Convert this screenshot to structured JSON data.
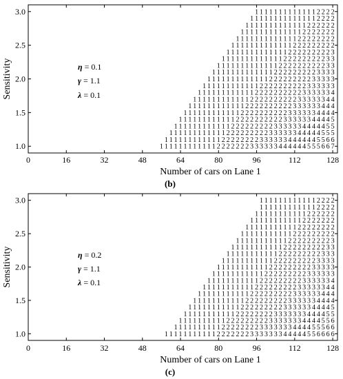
{
  "chart_data": [
    {
      "type": "table",
      "panel_label": "(b)",
      "xlabel": "Number of cars on Lane 1",
      "ylabel": "Sensitivity",
      "xlim": [
        0,
        130
      ],
      "ylim": [
        0.9,
        3.1
      ],
      "x_ticks": [
        "0",
        "16",
        "32",
        "48",
        "64",
        "80",
        "96",
        "112",
        "128"
      ],
      "y_ticks": [
        "1.0",
        "1.5",
        "2.0",
        "2.5",
        "3.0"
      ],
      "grid": false,
      "params": [
        {
          "greek": "η",
          "value": " = 0.1"
        },
        {
          "greek": "γ",
          "value": " = 1.1"
        },
        {
          "greek": "λ",
          "value": " = 0.1"
        }
      ],
      "sensitivity_levels": [
        1.0,
        1.1,
        1.2,
        1.3,
        1.4,
        1.5,
        1.6,
        1.7,
        1.8,
        1.9,
        2.0,
        2.1,
        2.2,
        2.3,
        2.4,
        2.5,
        2.6,
        2.7,
        2.8,
        2.9,
        3.0
      ],
      "x_values": [
        56,
        58,
        60,
        62,
        64,
        66,
        68,
        70,
        72,
        74,
        76,
        78,
        80,
        82,
        84,
        86,
        88,
        90,
        92,
        94,
        96,
        98,
        100,
        102,
        104,
        106,
        108,
        110,
        112,
        114,
        116,
        118,
        120,
        122,
        124,
        126,
        128
      ],
      "columns": [
        [
          1
        ],
        [
          1,
          1
        ],
        [
          1,
          1,
          1
        ],
        [
          1,
          1,
          1,
          1
        ],
        [
          1,
          1,
          1,
          1,
          1
        ],
        [
          1,
          1,
          1,
          1,
          1,
          1
        ],
        [
          1,
          1,
          1,
          1,
          1,
          1,
          1
        ],
        [
          1,
          1,
          1,
          1,
          1,
          1,
          1,
          1
        ],
        [
          1,
          1,
          1,
          1,
          1,
          1,
          1,
          1,
          1
        ],
        [
          1,
          1,
          1,
          1,
          1,
          1,
          1,
          1,
          1,
          1
        ],
        [
          1,
          1,
          1,
          1,
          1,
          1,
          1,
          1,
          1,
          1,
          1
        ],
        [
          1,
          1,
          1,
          1,
          1,
          1,
          1,
          1,
          1,
          1,
          1,
          1
        ],
        [
          2,
          1,
          1,
          1,
          1,
          1,
          1,
          1,
          1,
          1,
          1,
          1,
          1
        ],
        [
          2,
          2,
          1,
          1,
          1,
          1,
          1,
          1,
          1,
          1,
          1,
          1,
          1,
          1
        ],
        [
          2,
          2,
          2,
          1,
          1,
          1,
          1,
          1,
          1,
          1,
          1,
          1,
          1,
          1,
          1
        ],
        [
          2,
          2,
          2,
          2,
          1,
          1,
          1,
          1,
          1,
          1,
          1,
          1,
          1,
          1,
          1,
          1
        ],
        [
          2,
          2,
          2,
          2,
          2,
          1,
          1,
          1,
          1,
          1,
          1,
          1,
          1,
          1,
          1,
          1,
          1
        ],
        [
          2,
          2,
          2,
          2,
          2,
          2,
          1,
          1,
          1,
          1,
          1,
          1,
          1,
          1,
          1,
          1,
          1,
          1
        ],
        [
          2,
          2,
          2,
          2,
          2,
          2,
          2,
          1,
          1,
          1,
          1,
          1,
          1,
          1,
          1,
          1,
          1,
          1,
          1
        ],
        [
          3,
          2,
          2,
          2,
          2,
          2,
          2,
          2,
          1,
          1,
          1,
          1,
          1,
          1,
          1,
          1,
          1,
          1,
          1,
          1
        ],
        [
          3,
          2,
          2,
          2,
          2,
          2,
          2,
          2,
          2,
          1,
          1,
          1,
          1,
          1,
          1,
          1,
          1,
          1,
          1,
          1,
          1
        ],
        [
          3,
          3,
          2,
          2,
          2,
          2,
          2,
          2,
          2,
          2,
          1,
          1,
          1,
          1,
          1,
          1,
          1,
          1,
          1,
          1,
          1
        ],
        [
          3,
          3,
          2,
          2,
          2,
          2,
          2,
          2,
          2,
          2,
          1,
          1,
          1,
          1,
          1,
          1,
          1,
          1,
          1,
          1,
          1
        ],
        [
          3,
          3,
          3,
          2,
          2,
          2,
          2,
          2,
          2,
          2,
          2,
          1,
          1,
          1,
          1,
          1,
          1,
          1,
          1,
          1,
          1
        ],
        [
          3,
          3,
          3,
          3,
          2,
          2,
          2,
          2,
          2,
          2,
          2,
          2,
          1,
          1,
          1,
          1,
          1,
          1,
          1,
          1,
          1
        ],
        [
          4,
          3,
          3,
          3,
          2,
          2,
          2,
          2,
          2,
          2,
          2,
          2,
          2,
          1,
          1,
          1,
          1,
          1,
          1,
          1,
          1
        ],
        [
          4,
          3,
          3,
          3,
          3,
          2,
          2,
          2,
          2,
          2,
          2,
          2,
          2,
          2,
          1,
          1,
          1,
          1,
          1,
          1,
          1
        ],
        [
          4,
          4,
          3,
          3,
          3,
          3,
          2,
          2,
          2,
          2,
          2,
          2,
          2,
          2,
          2,
          1,
          1,
          1,
          1,
          1,
          1
        ],
        [
          4,
          4,
          3,
          3,
          3,
          3,
          3,
          2,
          2,
          2,
          2,
          2,
          2,
          2,
          2,
          2,
          1,
          1,
          1,
          1,
          1
        ],
        [
          4,
          4,
          4,
          3,
          3,
          3,
          3,
          3,
          2,
          2,
          2,
          2,
          2,
          2,
          2,
          2,
          2,
          1,
          1,
          1,
          1
        ],
        [
          4,
          4,
          4,
          4,
          3,
          3,
          3,
          3,
          3,
          2,
          2,
          2,
          2,
          2,
          2,
          2,
          2,
          2,
          1,
          1,
          1
        ],
        [
          5,
          4,
          4,
          4,
          3,
          3,
          3,
          3,
          3,
          3,
          2,
          2,
          2,
          2,
          2,
          2,
          2,
          2,
          2,
          1,
          1
        ],
        [
          5,
          4,
          4,
          4,
          4,
          3,
          3,
          3,
          3,
          3,
          3,
          2,
          2,
          2,
          2,
          2,
          2,
          2,
          2,
          1,
          1
        ],
        [
          5,
          5,
          4,
          4,
          4,
          4,
          3,
          3,
          3,
          3,
          3,
          3,
          2,
          2,
          2,
          2,
          2,
          2,
          2,
          2,
          2
        ],
        [
          6,
          5,
          5,
          4,
          4,
          4,
          4,
          3,
          3,
          3,
          3,
          3,
          2,
          2,
          2,
          2,
          2,
          2,
          2,
          2,
          2
        ],
        [
          6,
          6,
          5,
          5,
          4,
          4,
          4,
          4,
          3,
          3,
          3,
          3,
          3,
          3,
          2,
          2,
          2,
          2,
          2,
          2,
          2
        ],
        [
          7,
          6,
          5,
          5,
          5,
          4,
          4,
          4,
          4,
          3,
          3,
          3,
          3,
          3,
          3,
          2,
          2,
          2,
          2,
          2,
          2
        ]
      ]
    },
    {
      "type": "table",
      "panel_label": "(c)",
      "xlabel": "Number of cars on Lane 1",
      "ylabel": "Sensitivity",
      "xlim": [
        0,
        130
      ],
      "ylim": [
        0.9,
        3.1
      ],
      "x_ticks": [
        "0",
        "16",
        "32",
        "48",
        "64",
        "80",
        "96",
        "112",
        "128"
      ],
      "y_ticks": [
        "1.0",
        "1.5",
        "2.0",
        "2.5",
        "3.0"
      ],
      "grid": false,
      "params": [
        {
          "greek": "η",
          "value": " = 0.2"
        },
        {
          "greek": "γ",
          "value": " = 1.1"
        },
        {
          "greek": "λ",
          "value": " = 0.1"
        }
      ],
      "sensitivity_levels": [
        1.0,
        1.1,
        1.2,
        1.3,
        1.4,
        1.5,
        1.6,
        1.7,
        1.8,
        1.9,
        2.0,
        2.1,
        2.2,
        2.3,
        2.4,
        2.5,
        2.6,
        2.7,
        2.8,
        2.9,
        3.0
      ],
      "x_values": [
        58,
        60,
        62,
        64,
        66,
        68,
        70,
        72,
        74,
        76,
        78,
        80,
        82,
        84,
        86,
        88,
        90,
        92,
        94,
        96,
        98,
        100,
        102,
        104,
        106,
        108,
        110,
        112,
        114,
        116,
        118,
        120,
        122,
        124,
        126,
        128
      ],
      "columns": [
        [
          1
        ],
        [
          1
        ],
        [
          1,
          1
        ],
        [
          1,
          1,
          1
        ],
        [
          1,
          1,
          1,
          1
        ],
        [
          1,
          1,
          1,
          1,
          1
        ],
        [
          1,
          1,
          1,
          1,
          1,
          1
        ],
        [
          1,
          1,
          1,
          1,
          1,
          1,
          1
        ],
        [
          1,
          1,
          1,
          1,
          1,
          1,
          1,
          1
        ],
        [
          1,
          1,
          1,
          1,
          1,
          1,
          1,
          1,
          1
        ],
        [
          1,
          1,
          1,
          1,
          1,
          1,
          1,
          1,
          1,
          1
        ],
        [
          2,
          1,
          1,
          1,
          1,
          1,
          1,
          1,
          1,
          1,
          1
        ],
        [
          2,
          2,
          1,
          1,
          1,
          1,
          1,
          1,
          1,
          1,
          1,
          1
        ],
        [
          2,
          2,
          2,
          1,
          1,
          1,
          1,
          1,
          1,
          1,
          1,
          1,
          1
        ],
        [
          2,
          2,
          2,
          1,
          1,
          1,
          1,
          1,
          1,
          1,
          1,
          1,
          1,
          1
        ],
        [
          2,
          2,
          2,
          2,
          1,
          1,
          1,
          1,
          1,
          1,
          1,
          1,
          1,
          1,
          1
        ],
        [
          2,
          2,
          2,
          2,
          2,
          1,
          1,
          1,
          1,
          1,
          1,
          1,
          1,
          1,
          1,
          1
        ],
        [
          2,
          2,
          2,
          2,
          2,
          2,
          1,
          1,
          1,
          1,
          1,
          1,
          1,
          1,
          1,
          1,
          1
        ],
        [
          3,
          2,
          2,
          2,
          2,
          2,
          2,
          1,
          1,
          1,
          1,
          1,
          1,
          1,
          1,
          1,
          1,
          1
        ],
        [
          3,
          2,
          2,
          2,
          2,
          2,
          2,
          2,
          1,
          1,
          1,
          1,
          1,
          1,
          1,
          1,
          1,
          1,
          1
        ],
        [
          3,
          3,
          2,
          2,
          2,
          2,
          2,
          2,
          2,
          1,
          1,
          1,
          1,
          1,
          1,
          1,
          1,
          1,
          1,
          1,
          1
        ],
        [
          3,
          3,
          2,
          2,
          2,
          2,
          2,
          2,
          2,
          2,
          1,
          1,
          1,
          1,
          1,
          1,
          1,
          1,
          1,
          1,
          1
        ],
        [
          3,
          3,
          3,
          2,
          2,
          2,
          2,
          2,
          2,
          2,
          2,
          1,
          1,
          1,
          1,
          1,
          1,
          1,
          1,
          1,
          1
        ],
        [
          3,
          3,
          3,
          3,
          2,
          2,
          2,
          2,
          2,
          2,
          2,
          2,
          1,
          1,
          1,
          1,
          1,
          1,
          1,
          1,
          1
        ],
        [
          3,
          3,
          3,
          3,
          2,
          2,
          2,
          2,
          2,
          2,
          2,
          2,
          2,
          1,
          1,
          1,
          1,
          1,
          1,
          1,
          1
        ],
        [
          4,
          3,
          3,
          3,
          3,
          2,
          2,
          2,
          2,
          2,
          2,
          2,
          2,
          2,
          1,
          1,
          1,
          1,
          1,
          1,
          1
        ],
        [
          4,
          3,
          3,
          3,
          3,
          3,
          2,
          2,
          2,
          2,
          2,
          2,
          2,
          2,
          2,
          1,
          1,
          1,
          1,
          1,
          1
        ],
        [
          4,
          4,
          3,
          3,
          3,
          3,
          3,
          2,
          2,
          2,
          2,
          2,
          2,
          2,
          2,
          2,
          1,
          1,
          1,
          1,
          1
        ],
        [
          4,
          4,
          3,
          3,
          3,
          3,
          3,
          3,
          2,
          2,
          2,
          2,
          2,
          2,
          2,
          2,
          2,
          1,
          1,
          1,
          1
        ],
        [
          4,
          4,
          4,
          3,
          3,
          3,
          3,
          3,
          3,
          2,
          2,
          2,
          2,
          2,
          2,
          2,
          2,
          2,
          1,
          1,
          1
        ],
        [
          5,
          4,
          4,
          4,
          3,
          3,
          3,
          3,
          3,
          3,
          2,
          2,
          2,
          2,
          2,
          2,
          2,
          2,
          2,
          1,
          1
        ],
        [
          5,
          5,
          4,
          4,
          4,
          3,
          3,
          3,
          3,
          3,
          3,
          2,
          2,
          2,
          2,
          2,
          2,
          2,
          2,
          1,
          1
        ],
        [
          6,
          5,
          4,
          4,
          4,
          4,
          3,
          3,
          3,
          3,
          3,
          3,
          2,
          2,
          2,
          2,
          2,
          2,
          2,
          2,
          2
        ],
        [
          6,
          5,
          5,
          4,
          4,
          4,
          4,
          3,
          3,
          3,
          3,
          3,
          3,
          2,
          2,
          2,
          2,
          2,
          2,
          2,
          2
        ],
        [
          6,
          6,
          5,
          5,
          4,
          4,
          4,
          4,
          3,
          3,
          3,
          3,
          3,
          3,
          2,
          2,
          2,
          2,
          2,
          2,
          2
        ],
        [
          6,
          6,
          6,
          5,
          5,
          4,
          4,
          4,
          4,
          3,
          3,
          3,
          3,
          3,
          3,
          2,
          2,
          2,
          2,
          2,
          2
        ]
      ]
    }
  ]
}
